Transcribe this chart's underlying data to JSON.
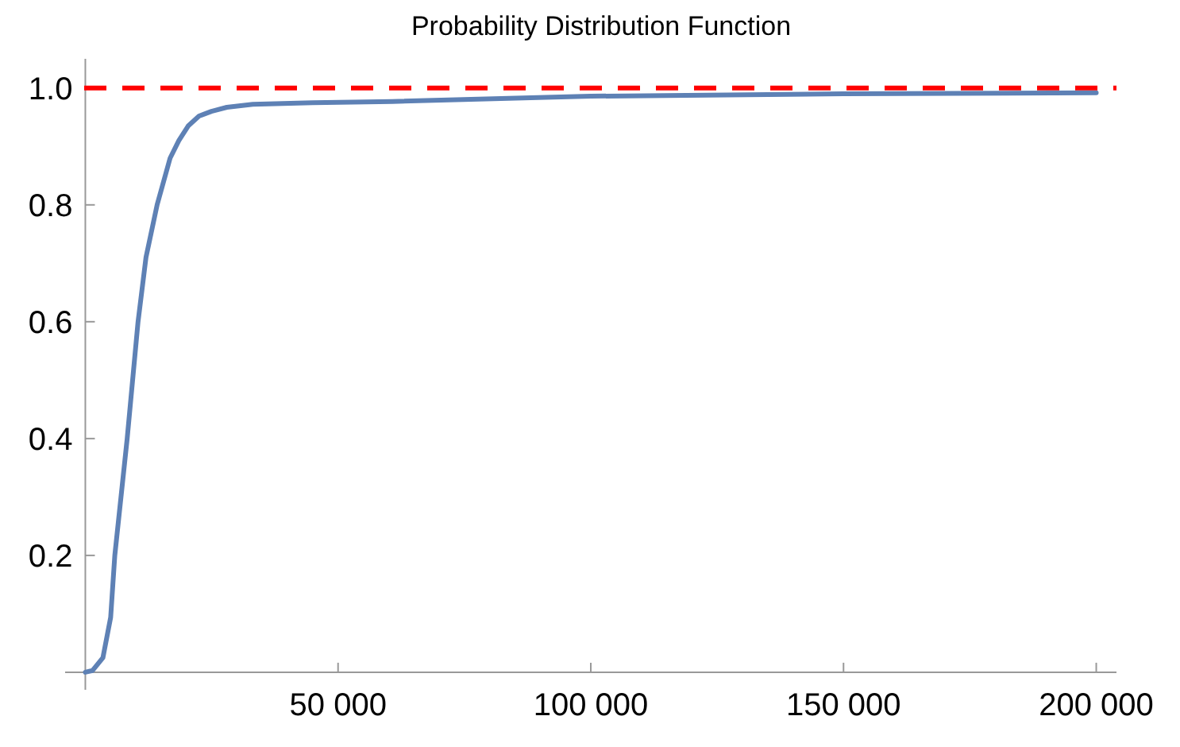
{
  "chart_data": {
    "type": "line",
    "title": "Probability Distribution Function",
    "x": [
      0,
      1440,
      3480,
      5010,
      5830,
      8280,
      10430,
      12000,
      14200,
      16770,
      18500,
      20340,
      22500,
      24950,
      28000,
      33130,
      45000,
      60740,
      100000,
      150000,
      200000
    ],
    "series": [
      {
        "color": "#5e81b5",
        "values": [
          0,
          0.003,
          0.025,
          0.094,
          0.2,
          0.4,
          0.6,
          0.71,
          0.8,
          0.88,
          0.91,
          0.935,
          0.952,
          0.96,
          0.967,
          0.972,
          0.975,
          0.977,
          0.986,
          0.99,
          0.992
        ]
      }
    ],
    "xlim": [
      -4000,
      204000
    ],
    "xticks": [
      {
        "value": 50000,
        "label": "50 000"
      },
      {
        "value": 100000,
        "label": "100 000"
      },
      {
        "value": 150000,
        "label": "150 000"
      },
      {
        "value": 200000,
        "label": "200 000"
      }
    ],
    "ylim": [
      -0.03,
      1.05
    ],
    "yticks": [
      0.2,
      0.4,
      0.6,
      0.8,
      {
        "value": 1,
        "label": "1.0"
      }
    ],
    "ref_lines": [
      {
        "axis": "y",
        "value": 1,
        "color": "#ff0000",
        "line_style": "dashed"
      }
    ],
    "grid": false,
    "marker": "none",
    "line_style": "solid"
  }
}
